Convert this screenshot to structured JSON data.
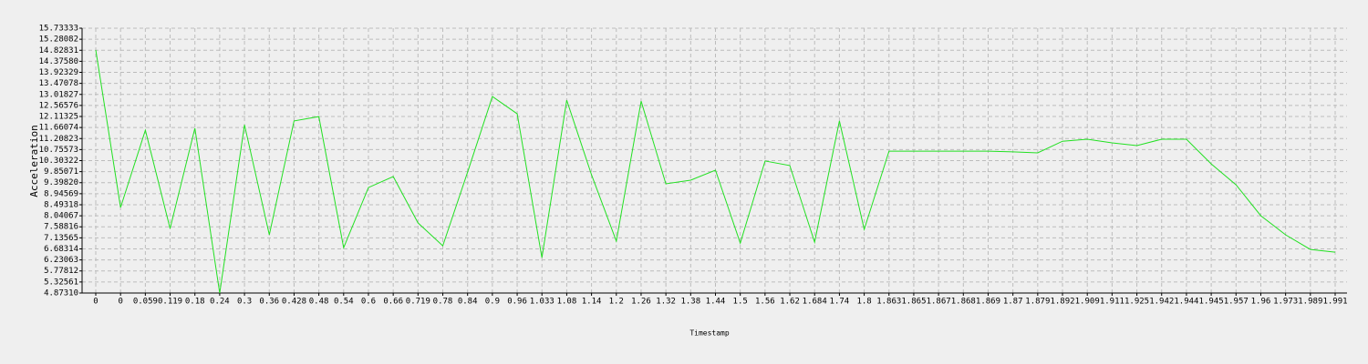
{
  "chart_data": {
    "type": "line",
    "x_label": "Timestamp",
    "y_label": "Acceleration",
    "categories": [
      "0",
      "0",
      "0.059",
      "0.119",
      "0.18",
      "0.24",
      "0.3",
      "0.36",
      "0.428",
      "0.48",
      "0.54",
      "0.6",
      "0.66",
      "0.719",
      "0.78",
      "0.84",
      "0.9",
      "0.96",
      "1.033",
      "1.08",
      "1.14",
      "1.2",
      "1.26",
      "1.32",
      "1.38",
      "1.44",
      "1.5",
      "1.56",
      "1.62",
      "1.684",
      "1.74",
      "1.8",
      "1.863",
      "1.865",
      "1.867",
      "1.868",
      "1.869",
      "1.87",
      "1.879",
      "1.892",
      "1.909",
      "1.911",
      "1.925",
      "1.942",
      "1.944",
      "1.945",
      "1.957",
      "1.96",
      "1.973",
      "1.989",
      "1.991"
    ],
    "series": [
      {
        "name": "Acceleration",
        "color": "#22e022",
        "values": [
          14.84,
          8.38,
          11.55,
          7.52,
          11.63,
          4.87,
          11.77,
          7.26,
          11.93,
          12.11,
          6.73,
          9.2,
          9.65,
          7.75,
          6.81,
          9.83,
          12.93,
          12.22,
          6.32,
          12.78,
          9.72,
          7.0,
          12.74,
          9.35,
          9.5,
          9.91,
          6.92,
          10.29,
          10.1,
          6.96,
          11.93,
          7.48,
          10.69,
          10.69,
          10.69,
          10.69,
          10.69,
          10.66,
          10.62,
          11.1,
          11.18,
          11.03,
          10.92,
          11.18,
          11.18,
          10.17,
          9.31,
          8.04,
          7.26,
          6.66,
          6.55
        ]
      }
    ],
    "ylim": [
      4.8731,
      15.73333
    ],
    "yticks": [
      {
        "value": 4.8731,
        "label": "4.87310"
      },
      5.32561,
      5.77812,
      6.23063,
      6.68314,
      7.13565,
      7.58816,
      8.04067,
      8.49318,
      8.94569,
      {
        "value": 9.3982,
        "label": "9.39820"
      },
      9.85071,
      10.30322,
      10.75573,
      11.20823,
      11.66074,
      12.11325,
      12.56576,
      13.01827,
      13.47078,
      13.92329,
      {
        "value": 14.3758,
        "label": "14.37580"
      },
      14.82831,
      15.28082,
      15.73333
    ],
    "grid": true
  }
}
